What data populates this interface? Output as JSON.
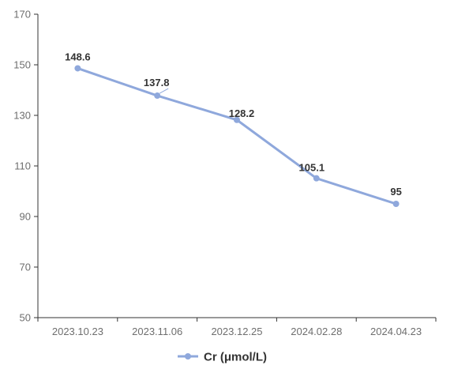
{
  "chart_data": {
    "type": "line",
    "title": "",
    "xlabel": "",
    "ylabel": "",
    "categories": [
      "2023.10.23",
      "2023.11.06",
      "2023.12.25",
      "2024.02.28",
      "2024.04.23"
    ],
    "series": [
      {
        "name": "Cr (μmol/L)",
        "values": [
          148.6,
          137.8,
          128.2,
          105.1,
          95
        ],
        "labels": [
          "148.6",
          "137.8",
          "128.2",
          "105.1",
          "95"
        ],
        "color": "#8fa8dc"
      }
    ],
    "ylim": [
      50,
      170
    ],
    "yticks": [
      50,
      70,
      90,
      110,
      130,
      150,
      170
    ],
    "grid": false,
    "legend": "bottom-center",
    "axis_color": "#333333"
  }
}
